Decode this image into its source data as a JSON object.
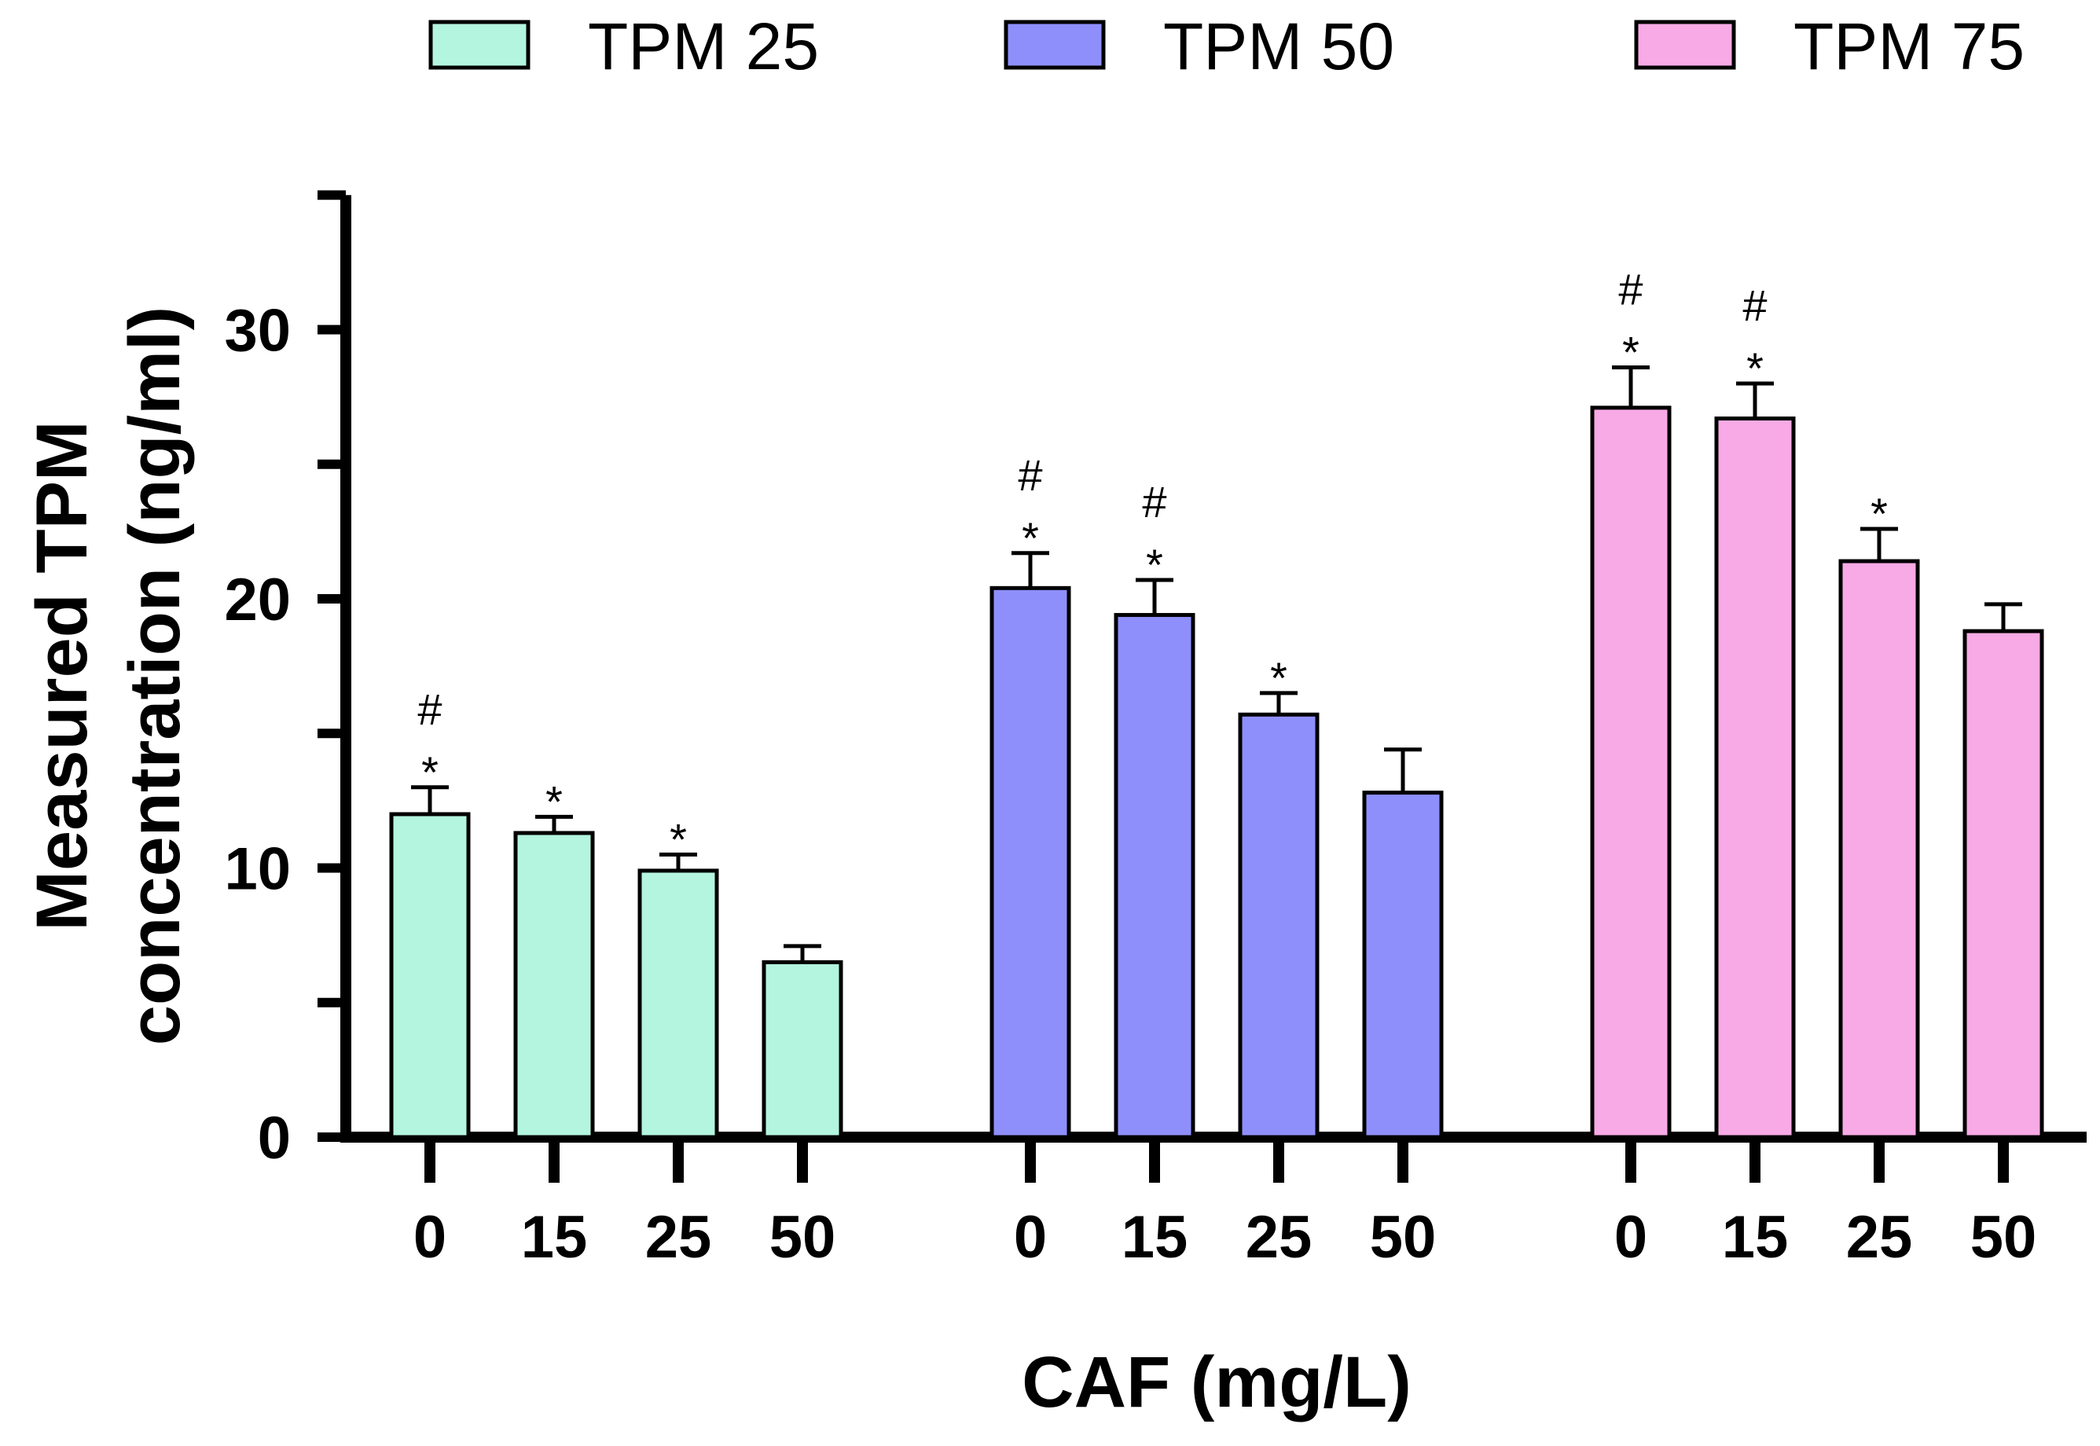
{
  "chart_data": {
    "type": "bar",
    "title": "",
    "xlabel": "CAF (mg/L)",
    "ylabel_lines": [
      "Measured TPM",
      "concentration (ng/ml)"
    ],
    "ylim": [
      0,
      35
    ],
    "yticks": [
      0,
      10,
      20,
      30
    ],
    "legend_position": "top",
    "categories": [
      "0",
      "15",
      "25",
      "50"
    ],
    "series": [
      {
        "name": "TPM 25",
        "color": "#b3f5df",
        "values": [
          12.0,
          11.3,
          9.9,
          6.5
        ],
        "errors": [
          1.0,
          0.6,
          0.6,
          0.6
        ],
        "annotations": [
          "#\n*",
          "*",
          "*",
          ""
        ]
      },
      {
        "name": "TPM 50",
        "color": "#8f8ffc",
        "values": [
          20.4,
          19.4,
          15.7,
          12.8
        ],
        "errors": [
          1.3,
          1.3,
          0.8,
          1.6
        ],
        "annotations": [
          "#\n*",
          "#\n*",
          "*",
          ""
        ]
      },
      {
        "name": "TPM 75",
        "color": "#f7aae5",
        "values": [
          27.1,
          26.7,
          21.4,
          18.8
        ],
        "errors": [
          1.5,
          1.3,
          1.2,
          1.0
        ],
        "annotations": [
          "#\n*",
          "#\n*",
          "*",
          ""
        ]
      }
    ]
  }
}
